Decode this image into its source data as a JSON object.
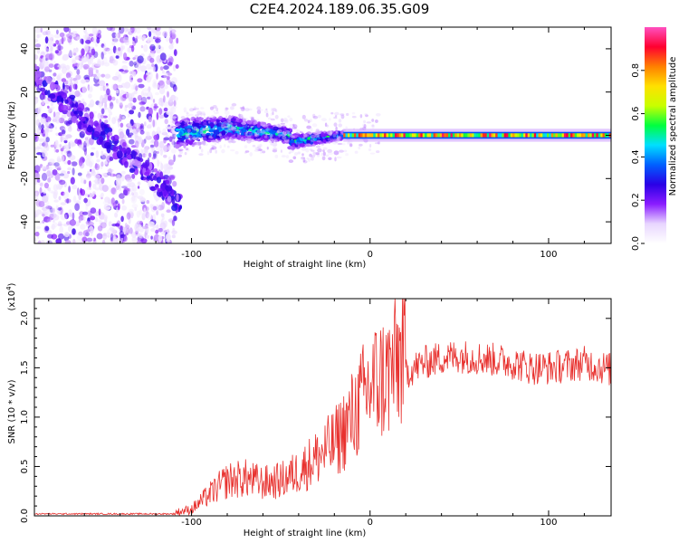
{
  "title": "C2E4.2024.189.06.35.G09",
  "colors": {
    "snr_line": "#e8312e",
    "axis": "#000000",
    "colormap": [
      "#ffffff",
      "#e8d6ff",
      "#8a1cff",
      "#2a00e6",
      "#0060ff",
      "#00e0ff",
      "#00ff40",
      "#c8ff00",
      "#ffe000",
      "#ff8000",
      "#ff0030",
      "#ff50c0"
    ]
  },
  "chart_data": [
    {
      "type": "heatmap",
      "title": "C2E4.2024.189.06.35.G09",
      "xlabel": "Height of straight line (km)",
      "ylabel": "Frequency (Hz)",
      "xlim": [
        -188,
        135
      ],
      "ylim": [
        -50,
        50
      ],
      "xticks": [
        -100,
        0,
        100
      ],
      "xtick_labels": [
        "-100",
        "0",
        "100"
      ],
      "yticks": [
        -40,
        -20,
        0,
        20,
        40
      ],
      "ytick_labels": [
        "-40",
        "-20",
        "0",
        "20",
        "40"
      ],
      "grid": false,
      "description_points": {
        "noise_region_x": [
          -188,
          -108
        ],
        "transition_x": [
          -108,
          -15
        ],
        "carrier_x": [
          -15,
          135
        ],
        "carrier_freq": 0
      },
      "colorbar": {
        "label": "Normalized spectral amplitude",
        "range": [
          0.0,
          1.0
        ],
        "ticks": [
          0.0,
          0.2,
          0.4,
          0.6,
          0.8
        ],
        "tick_labels": [
          "0.0",
          "0.2",
          "0.4",
          "0.6",
          "0.8"
        ]
      }
    },
    {
      "type": "line",
      "xlabel": "Height of straight line (km)",
      "ylabel": "SNR (10 * v/v)",
      "yscale_label_base": "(x10",
      "yscale_label_exp": "4",
      "yscale_label_close": ")",
      "xlim": [
        -188,
        135
      ],
      "ylim": [
        0,
        2.2
      ],
      "xticks": [
        -100,
        0,
        100
      ],
      "xtick_labels": [
        "-100",
        "0",
        "100"
      ],
      "yticks": [
        0.0,
        0.5,
        1.0,
        1.5,
        2.0
      ],
      "ytick_labels": [
        "0.0",
        "0.5",
        "1.0",
        "1.5",
        "2.0"
      ],
      "series": [
        {
          "envelope_x": [
            -188,
            -110,
            -100,
            -90,
            -80,
            -70,
            -60,
            -50,
            -40,
            -30,
            -20,
            -10,
            0,
            10,
            20,
            30,
            40,
            50,
            60,
            70,
            80,
            90,
            100,
            110,
            120,
            135
          ],
          "envelope_y": [
            0.02,
            0.02,
            0.05,
            0.18,
            0.3,
            0.32,
            0.28,
            0.3,
            0.38,
            0.5,
            0.62,
            0.85,
            1.12,
            1.22,
            1.45,
            1.55,
            1.6,
            1.62,
            1.6,
            1.58,
            1.55,
            1.5,
            1.5,
            1.52,
            1.55,
            1.48
          ]
        }
      ]
    }
  ]
}
